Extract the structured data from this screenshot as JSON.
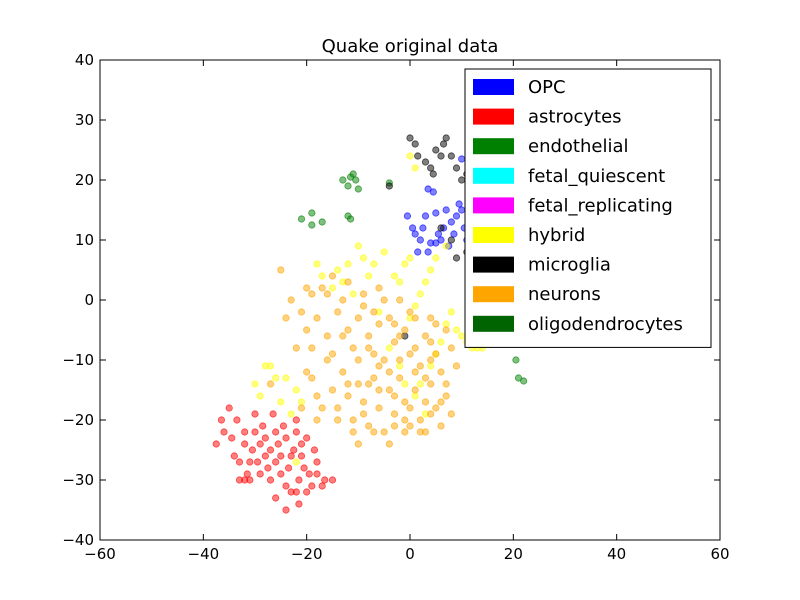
{
  "chart_data": {
    "type": "scatter",
    "title": "Quake original data",
    "xlabel": "",
    "ylabel": "",
    "xlim": [
      -60,
      60
    ],
    "ylim": [
      -40,
      40
    ],
    "xticks": [
      -60,
      -40,
      -20,
      0,
      20,
      40,
      60
    ],
    "yticks": [
      -40,
      -30,
      -20,
      -10,
      0,
      10,
      20,
      30,
      40
    ],
    "xtick_labels": [
      "−60",
      "−40",
      "−20",
      "0",
      "20",
      "40",
      "60"
    ],
    "ytick_labels": [
      "−40",
      "−30",
      "−20",
      "−10",
      "0",
      "10",
      "20",
      "30",
      "40"
    ],
    "grid": false,
    "legend_position": "top-right",
    "series": [
      {
        "name": "OPC",
        "color": "#0000ff",
        "points": [
          [
            -0.5,
            14
          ],
          [
            0.5,
            12
          ],
          [
            1,
            11
          ],
          [
            1.5,
            8
          ],
          [
            2,
            10
          ],
          [
            2.5,
            12
          ],
          [
            3,
            14
          ],
          [
            3.5,
            8
          ],
          [
            4,
            9.5
          ],
          [
            5,
            9.5
          ],
          [
            5.5,
            11
          ],
          [
            5,
            14.5
          ],
          [
            6,
            10
          ],
          [
            6.5,
            12
          ],
          [
            7,
            15
          ],
          [
            7.5,
            9
          ],
          [
            8,
            13
          ],
          [
            8.5,
            11
          ],
          [
            9,
            14
          ],
          [
            9.5,
            16
          ],
          [
            10,
            15
          ],
          [
            10.5,
            12
          ],
          [
            11,
            10
          ],
          [
            3.5,
            18.5
          ],
          [
            4.5,
            18
          ],
          [
            10,
            23.5
          ]
        ]
      },
      {
        "name": "astrocytes",
        "color": "#ff0000",
        "points": [
          [
            -37.5,
            -24
          ],
          [
            -36.5,
            -20
          ],
          [
            -36,
            -22
          ],
          [
            -35,
            -18
          ],
          [
            -34.5,
            -23
          ],
          [
            -34,
            -26
          ],
          [
            -33.5,
            -20
          ],
          [
            -33,
            -27
          ],
          [
            -32,
            -24
          ],
          [
            -32,
            -22
          ],
          [
            -31.5,
            -29
          ],
          [
            -31,
            -30
          ],
          [
            -31,
            -27
          ],
          [
            -30.5,
            -25
          ],
          [
            -30,
            -19
          ],
          [
            -30,
            -22
          ],
          [
            -29.5,
            -27
          ],
          [
            -29,
            -29
          ],
          [
            -29,
            -24
          ],
          [
            -28.5,
            -21
          ],
          [
            -28,
            -23
          ],
          [
            -28,
            -26
          ],
          [
            -27.5,
            -28
          ],
          [
            -27,
            -25
          ],
          [
            -27,
            -30
          ],
          [
            -26.5,
            -19
          ],
          [
            -26,
            -22
          ],
          [
            -26,
            -27
          ],
          [
            -25.5,
            -24
          ],
          [
            -25,
            -26
          ],
          [
            -25,
            -29
          ],
          [
            -24.5,
            -21
          ],
          [
            -24,
            -23
          ],
          [
            -24,
            -31
          ],
          [
            -23.5,
            -28
          ],
          [
            -23,
            -26
          ],
          [
            -23,
            -32
          ],
          [
            -22.5,
            -25
          ],
          [
            -22,
            -20
          ],
          [
            -22,
            -22
          ],
          [
            -21.5,
            -30
          ],
          [
            -21,
            -26
          ],
          [
            -21,
            -24
          ],
          [
            -20.5,
            -28
          ],
          [
            -20,
            -32
          ],
          [
            -20,
            -23
          ],
          [
            -19.5,
            -29
          ],
          [
            -19,
            -31
          ],
          [
            -18.5,
            -25
          ],
          [
            -18,
            -29
          ],
          [
            -18,
            -27
          ],
          [
            -16.5,
            -30
          ],
          [
            -17,
            -31
          ],
          [
            -26,
            -33
          ],
          [
            -24,
            -35
          ],
          [
            -22,
            -32
          ],
          [
            -21.5,
            -34
          ],
          [
            -15,
            -30
          ],
          [
            -32,
            -30
          ],
          [
            -33,
            -30
          ]
        ]
      },
      {
        "name": "endothelial",
        "color": "#008000",
        "points": [
          [
            -21,
            13.5
          ],
          [
            -19,
            14.5
          ],
          [
            -19,
            12.5
          ],
          [
            -17,
            13
          ],
          [
            -12,
            14
          ],
          [
            -11.5,
            13.5
          ],
          [
            -13,
            20
          ],
          [
            -12,
            19
          ],
          [
            -11.5,
            20.5
          ],
          [
            -11,
            21
          ],
          [
            -10.5,
            20
          ],
          [
            -10,
            18.5
          ],
          [
            -4,
            19.5
          ],
          [
            20.5,
            -10
          ],
          [
            21,
            -13
          ],
          [
            22,
            -13.5
          ]
        ]
      },
      {
        "name": "fetal_quiescent",
        "color": "#00ffff",
        "points": []
      },
      {
        "name": "fetal_replicating",
        "color": "#ff00ff",
        "points": []
      },
      {
        "name": "hybrid",
        "color": "#ffff00",
        "points": [
          [
            -30,
            -14
          ],
          [
            -29,
            -16
          ],
          [
            -28,
            -11
          ],
          [
            -27,
            -11
          ],
          [
            -26,
            -13
          ],
          [
            -25,
            -17
          ],
          [
            -24,
            -13
          ],
          [
            -23,
            -19
          ],
          [
            -22,
            -15
          ],
          [
            -21,
            -17
          ],
          [
            -22,
            -27
          ],
          [
            0,
            24
          ],
          [
            1,
            22
          ],
          [
            -3,
            4
          ],
          [
            -1,
            6
          ],
          [
            -2,
            3
          ],
          [
            0,
            7
          ],
          [
            -5,
            8
          ],
          [
            -7,
            6
          ],
          [
            -10,
            9
          ],
          [
            -9,
            7
          ],
          [
            -12,
            6
          ],
          [
            -14,
            5
          ],
          [
            -13,
            3
          ],
          [
            -17,
            4
          ],
          [
            -18,
            6
          ],
          [
            -15,
            2
          ],
          [
            -11,
            1
          ],
          [
            -8,
            4
          ],
          [
            -6,
            -2
          ],
          [
            -4,
            -8
          ],
          [
            -2,
            -11
          ],
          [
            -1,
            -14
          ],
          [
            1,
            -16
          ],
          [
            3,
            -19
          ],
          [
            2,
            -14
          ],
          [
            4,
            -11
          ],
          [
            5,
            -9
          ],
          [
            6,
            -7
          ],
          [
            7,
            -4
          ],
          [
            8,
            -2
          ],
          [
            9,
            -5
          ],
          [
            10,
            -6
          ],
          [
            11,
            -7
          ],
          [
            12,
            -8
          ],
          [
            13,
            -8
          ],
          [
            14,
            -8
          ],
          [
            7,
            9
          ],
          [
            5,
            7
          ],
          [
            4,
            5
          ],
          [
            3,
            3
          ],
          [
            2,
            1
          ],
          [
            1,
            -1
          ],
          [
            0,
            -3
          ]
        ]
      },
      {
        "name": "microglia",
        "color": "#000000",
        "points": [
          [
            -4,
            19
          ],
          [
            0,
            27
          ],
          [
            1,
            26
          ],
          [
            1.5,
            24
          ],
          [
            3,
            23
          ],
          [
            4,
            22
          ],
          [
            4.5,
            21
          ],
          [
            5,
            25
          ],
          [
            6,
            24
          ],
          [
            6.5,
            26
          ],
          [
            7,
            27
          ],
          [
            8,
            24
          ],
          [
            9,
            22
          ],
          [
            10,
            20
          ],
          [
            11,
            21
          ],
          [
            12,
            23
          ],
          [
            13,
            22
          ],
          [
            13.5,
            16
          ],
          [
            13,
            13
          ],
          [
            12,
            10
          ],
          [
            11,
            8
          ],
          [
            9,
            7
          ],
          [
            8,
            10
          ],
          [
            6,
            12
          ],
          [
            -1,
            -6
          ]
        ]
      },
      {
        "name": "neurons",
        "color": "#ffa500",
        "points": [
          [
            -23,
            0
          ],
          [
            -21,
            -2
          ],
          [
            -20,
            -5
          ],
          [
            -19,
            -8
          ],
          [
            -18,
            -3
          ],
          [
            -17,
            2
          ],
          [
            -16,
            -6
          ],
          [
            -15,
            -9
          ],
          [
            -14,
            -2
          ],
          [
            -13,
            0
          ],
          [
            -12,
            -5
          ],
          [
            -11,
            -8
          ],
          [
            -10,
            -3
          ],
          [
            -9,
            1
          ],
          [
            -8,
            -6
          ],
          [
            -7,
            -9
          ],
          [
            -6,
            -4
          ],
          [
            -5,
            0
          ],
          [
            -4,
            -3
          ],
          [
            -3,
            -7
          ],
          [
            -2,
            -10
          ],
          [
            -1,
            -5
          ],
          [
            0,
            -2
          ],
          [
            1,
            -8
          ],
          [
            2,
            -11
          ],
          [
            3,
            -6
          ],
          [
            4,
            -3
          ],
          [
            5,
            -9
          ],
          [
            6,
            -12
          ],
          [
            7,
            -5
          ],
          [
            8,
            -8
          ],
          [
            9,
            -11
          ],
          [
            -20,
            -12
          ],
          [
            -18,
            -16
          ],
          [
            -16,
            -10
          ],
          [
            -15,
            -15
          ],
          [
            -14,
            -18
          ],
          [
            -13,
            -12
          ],
          [
            -12,
            -16
          ],
          [
            -11,
            -20
          ],
          [
            -10,
            -14
          ],
          [
            -9,
            -17
          ],
          [
            -8,
            -21
          ],
          [
            -7,
            -13
          ],
          [
            -6,
            -18
          ],
          [
            -5,
            -22
          ],
          [
            -4,
            -15
          ],
          [
            -3,
            -19
          ],
          [
            -2,
            -13
          ],
          [
            -1,
            -17
          ],
          [
            0,
            -21
          ],
          [
            1,
            -15
          ],
          [
            2,
            -20
          ],
          [
            3,
            -17
          ],
          [
            4,
            -14
          ],
          [
            5,
            -18
          ],
          [
            6,
            -21
          ],
          [
            7,
            -16
          ],
          [
            8,
            -19
          ],
          [
            -24,
            -3
          ],
          [
            -22,
            -8
          ],
          [
            -19,
            -13
          ],
          [
            -17,
            -18
          ],
          [
            -14,
            -20
          ],
          [
            -11,
            -22
          ],
          [
            -8,
            -14
          ],
          [
            -6,
            -11
          ],
          [
            -3,
            -16
          ],
          [
            -1,
            -20
          ],
          [
            2,
            -22
          ],
          [
            4,
            -19
          ],
          [
            6,
            -17
          ],
          [
            -13,
            -6
          ],
          [
            -10,
            -10
          ],
          [
            -7,
            -2
          ],
          [
            -4,
            -12
          ],
          [
            -2,
            0
          ],
          [
            0,
            -9
          ],
          [
            3,
            -13
          ],
          [
            5,
            -4
          ],
          [
            -16,
            1
          ],
          [
            -12,
            3
          ],
          [
            -9,
            -1
          ],
          [
            -6,
            2
          ],
          [
            -3,
            -4
          ],
          [
            1,
            -3
          ],
          [
            4,
            -7
          ],
          [
            -25,
            5
          ],
          [
            -20,
            2
          ],
          [
            -15,
            4
          ],
          [
            -12,
            -14
          ],
          [
            -9,
            -19
          ],
          [
            -6,
            -15
          ],
          [
            -3,
            -21
          ],
          [
            0,
            -18
          ],
          [
            3,
            -22
          ],
          [
            -18,
            -20
          ],
          [
            -21,
            -18
          ],
          [
            -27,
            -14
          ],
          [
            -19,
            1
          ],
          [
            -8,
            -8
          ],
          [
            -5,
            -10
          ],
          [
            -2,
            -6
          ],
          [
            1,
            -12
          ],
          [
            4,
            -10
          ],
          [
            7,
            -14
          ],
          [
            -10,
            -24
          ],
          [
            -7,
            -22
          ],
          [
            -4,
            -24
          ],
          [
            -1,
            -22
          ]
        ]
      },
      {
        "name": "oligodendrocytes",
        "color": "#006400",
        "points": []
      }
    ]
  }
}
